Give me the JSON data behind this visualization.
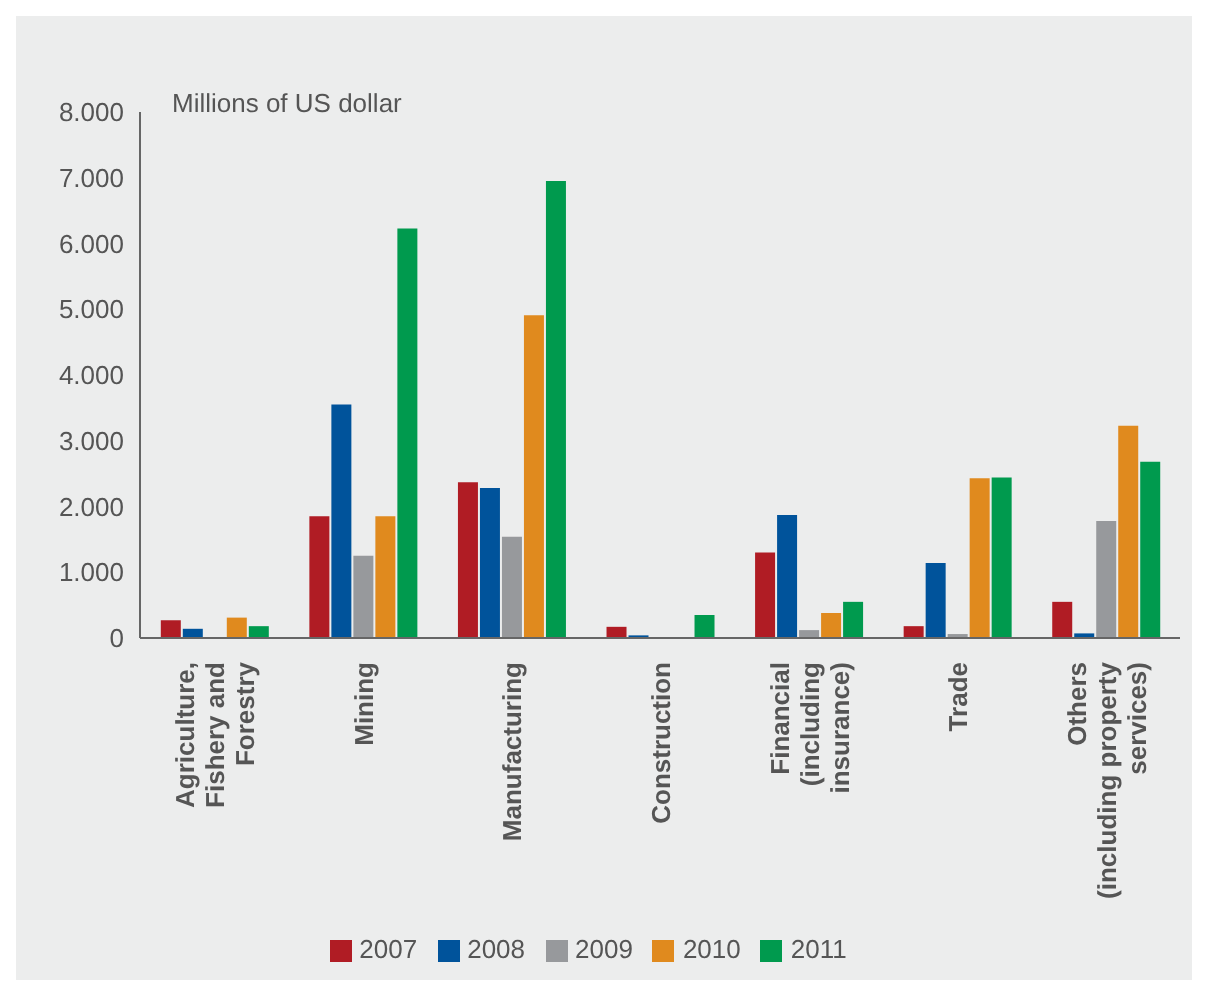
{
  "chart_data": {
    "type": "bar",
    "ylabel": "Millions of US dollar",
    "categories": [
      "Agriculture,\nFishery and\nForestry",
      "Mining",
      "Manufacturing",
      "Construction",
      "Financial\n(including\ninsurance)",
      "Trade",
      "Others\n(including property\nservices)"
    ],
    "series": [
      {
        "name": "2007",
        "color": "#b01c24",
        "values": [
          270,
          1850,
          2370,
          170,
          1300,
          180,
          550
        ]
      },
      {
        "name": "2008",
        "color": "#00539b",
        "values": [
          140,
          3550,
          2280,
          40,
          1870,
          1140,
          70
        ]
      },
      {
        "name": "2009",
        "color": "#97999c",
        "values": [
          0,
          1250,
          1540,
          0,
          120,
          60,
          1780
        ]
      },
      {
        "name": "2010",
        "color": "#e08a1e",
        "values": [
          310,
          1850,
          4910,
          0,
          380,
          2430,
          3230
        ]
      },
      {
        "name": "2011",
        "color": "#009a4e",
        "values": [
          180,
          6230,
          6950,
          350,
          550,
          2440,
          2680
        ]
      }
    ],
    "ylim": [
      0,
      8000
    ],
    "yticks": [
      0,
      {
        "value": 1000,
        "label": "1.000"
      },
      {
        "value": 2000,
        "label": "2.000"
      },
      {
        "value": 3000,
        "label": "3.000"
      },
      {
        "value": 4000,
        "label": "4.000"
      },
      {
        "value": 5000,
        "label": "5.000"
      },
      {
        "value": 6000,
        "label": "6.000"
      },
      {
        "value": 7000,
        "label": "7.000"
      },
      {
        "value": 8000,
        "label": "8.000"
      }
    ],
    "grid": false,
    "legend": "bottom"
  }
}
